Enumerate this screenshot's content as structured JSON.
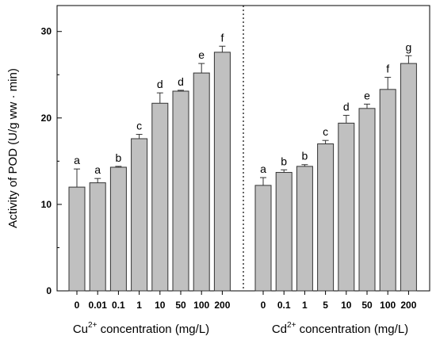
{
  "chart_data": {
    "type": "bar",
    "ylabel": "Activity of POD (U/g ww · min)",
    "ylim": [
      0,
      33
    ],
    "yticks": [
      0,
      10,
      20,
      30
    ],
    "bar_color": "#c0c0c0",
    "edge_color": "#333333",
    "panels": [
      {
        "xlabel_ion": "Cu",
        "xlabel_sup": "2+",
        "xlabel_rest": " concentration (mg/L)",
        "categories": [
          "0",
          "0.01",
          "0.1",
          "1",
          "10",
          "50",
          "100",
          "200"
        ],
        "values": [
          12.0,
          12.5,
          14.3,
          17.6,
          21.7,
          23.1,
          25.2,
          27.6
        ],
        "errors": [
          2.1,
          0.5,
          0.1,
          0.5,
          1.2,
          0.1,
          1.1,
          0.7
        ],
        "labels": [
          "a",
          "a",
          "b",
          "c",
          "d",
          "d",
          "e",
          "f"
        ]
      },
      {
        "xlabel_ion": "Cd",
        "xlabel_sup": "2+",
        "xlabel_rest": " concentration (mg/L)",
        "categories": [
          "0",
          "0.1",
          "1",
          "5",
          "10",
          "50",
          "100",
          "200"
        ],
        "values": [
          12.2,
          13.7,
          14.4,
          17.0,
          19.4,
          21.1,
          23.3,
          26.3
        ],
        "errors": [
          0.9,
          0.3,
          0.2,
          0.4,
          0.9,
          0.5,
          1.4,
          0.9
        ],
        "labels": [
          "a",
          "b",
          "b",
          "c",
          "d",
          "e",
          "f",
          "g"
        ]
      }
    ]
  }
}
